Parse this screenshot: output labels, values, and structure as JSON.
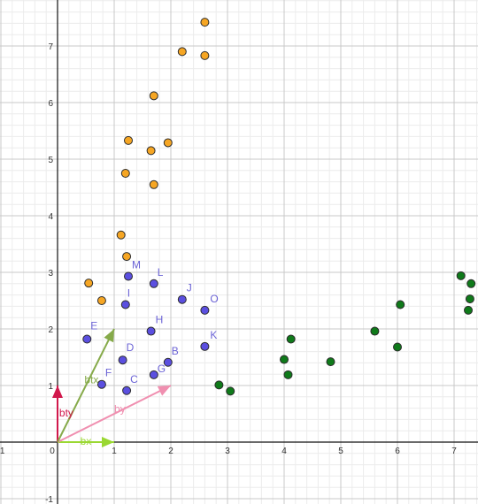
{
  "colors": {
    "grid_minor": "#ececec",
    "grid_major": "#c8c8c8",
    "axis": "#111111",
    "orange": "#f6a623",
    "blue": "#5b4fe0",
    "green": "#0f7a1a",
    "point_stroke": "#2d2d2d",
    "label_blue": "#6b63d6",
    "vec_bx": "#9ad832",
    "vec_by": "#f08fb0",
    "vec_bty": "#d1184c",
    "vec_btx": "#86aa4a"
  },
  "axes": {
    "x_ticks": [
      "-1",
      "0",
      "1",
      "2",
      "3",
      "4",
      "5",
      "6",
      "7"
    ],
    "y_ticks": [
      "-1",
      "1",
      "2",
      "3",
      "4",
      "5",
      "6",
      "7"
    ]
  },
  "chart_data": {
    "type": "scatter",
    "xlim": [
      -1,
      7.4
    ],
    "ylim": [
      -1.05,
      7.75
    ],
    "grid": true,
    "series": [
      {
        "color": "orange",
        "points": [
          [
            2.6,
            7.42
          ],
          [
            2.2,
            6.9
          ],
          [
            2.6,
            6.83
          ],
          [
            1.7,
            6.12
          ],
          [
            1.25,
            5.33
          ],
          [
            1.95,
            5.29
          ],
          [
            1.65,
            5.15
          ],
          [
            1.2,
            4.75
          ],
          [
            1.7,
            4.55
          ],
          [
            1.12,
            3.66
          ],
          [
            1.22,
            3.28
          ],
          [
            0.55,
            2.81
          ],
          [
            0.78,
            2.5
          ]
        ]
      },
      {
        "color": "blue",
        "points": [
          {
            "label": "M",
            "x": 1.25,
            "y": 2.93
          },
          {
            "label": "L",
            "x": 1.7,
            "y": 2.8
          },
          {
            "label": "I",
            "x": 1.2,
            "y": 2.43
          },
          {
            "label": "J",
            "x": 2.2,
            "y": 2.52
          },
          {
            "label": "O",
            "x": 2.6,
            "y": 2.33
          },
          {
            "label": "H",
            "x": 1.65,
            "y": 1.96
          },
          {
            "label": "E",
            "x": 0.52,
            "y": 1.82
          },
          {
            "label": "K",
            "x": 2.6,
            "y": 1.69
          },
          {
            "label": "D",
            "x": 1.15,
            "y": 1.45
          },
          {
            "label": "B",
            "x": 1.95,
            "y": 1.41
          },
          {
            "label": "G",
            "x": 1.7,
            "y": 1.19
          },
          {
            "label": "F",
            "x": 0.78,
            "y": 1.02
          },
          {
            "label": "C",
            "x": 1.22,
            "y": 0.91
          }
        ]
      },
      {
        "color": "green",
        "points": [
          [
            2.85,
            1.01
          ],
          [
            3.05,
            0.9
          ],
          [
            4.12,
            1.82
          ],
          [
            4.0,
            1.46
          ],
          [
            4.07,
            1.19
          ],
          [
            4.82,
            1.42
          ],
          [
            5.6,
            1.96
          ],
          [
            6.05,
            2.43
          ],
          [
            6.0,
            1.68
          ],
          [
            7.12,
            2.94
          ],
          [
            7.3,
            2.8
          ],
          [
            7.28,
            2.53
          ],
          [
            7.25,
            2.33
          ]
        ]
      }
    ],
    "vectors": [
      {
        "label": "bx",
        "color": "vec_bx",
        "to": [
          1.0,
          0.0
        ]
      },
      {
        "label": "by",
        "color": "vec_by",
        "to": [
          2.0,
          1.0
        ]
      },
      {
        "label": "bty",
        "color": "vec_bty",
        "to": [
          0.0,
          1.0
        ]
      },
      {
        "label": "btx",
        "color": "vec_btx",
        "to": [
          1.0,
          2.0
        ]
      }
    ]
  }
}
